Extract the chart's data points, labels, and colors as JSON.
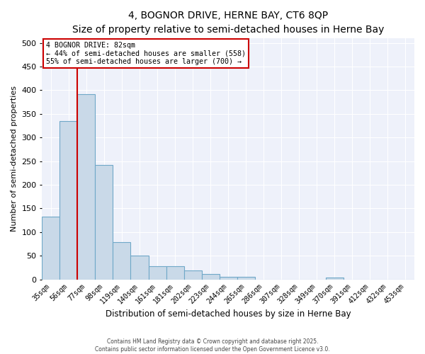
{
  "title": "4, BOGNOR DRIVE, HERNE BAY, CT6 8QP",
  "subtitle": "Size of property relative to semi-detached houses in Herne Bay",
  "xlabel": "Distribution of semi-detached houses by size in Herne Bay",
  "ylabel": "Number of semi-detached properties",
  "categories": [
    "35sqm",
    "56sqm",
    "77sqm",
    "98sqm",
    "119sqm",
    "140sqm",
    "161sqm",
    "181sqm",
    "202sqm",
    "223sqm",
    "244sqm",
    "265sqm",
    "286sqm",
    "307sqm",
    "328sqm",
    "349sqm",
    "370sqm",
    "391sqm",
    "412sqm",
    "432sqm",
    "453sqm"
  ],
  "values": [
    133,
    335,
    392,
    242,
    78,
    51,
    28,
    28,
    19,
    11,
    5,
    5,
    0,
    0,
    0,
    0,
    4,
    0,
    0,
    0,
    0
  ],
  "bar_color": "#c9d9e8",
  "bar_edge_color": "#6fa8c8",
  "red_line_index": 2,
  "annotation_title": "4 BOGNOR DRIVE: 82sqm",
  "annotation_line1": "← 44% of semi-detached houses are smaller (558)",
  "annotation_line2": "55% of semi-detached houses are larger (700) →",
  "annotation_box_color": "#ffffff",
  "annotation_box_edge": "#cc0000",
  "red_line_color": "#cc0000",
  "background_color": "#eef1fa",
  "footer1": "Contains HM Land Registry data © Crown copyright and database right 2025.",
  "footer2": "Contains public sector information licensed under the Open Government Licence v3.0.",
  "ylim": [
    0,
    510
  ],
  "yticks": [
    0,
    50,
    100,
    150,
    200,
    250,
    300,
    350,
    400,
    450,
    500
  ]
}
